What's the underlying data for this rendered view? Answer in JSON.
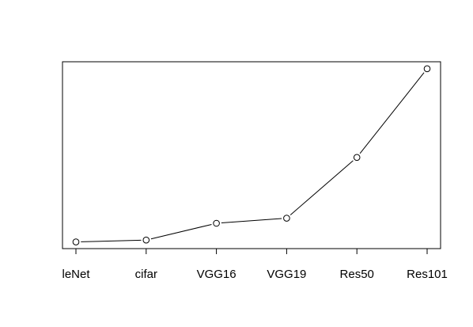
{
  "chart_data": {
    "type": "line",
    "categories": [
      "leNet",
      "cifar",
      "VGG16",
      "VGG19",
      "Res50",
      "Res101"
    ],
    "series": [
      {
        "values": [
          0.15,
          0.45,
          3.1,
          3.9,
          13.5,
          27.5
        ],
        "marker": "open-circle"
      }
    ],
    "title": "",
    "xlabel": "",
    "ylabel": "",
    "ylim": [
      -0.9,
      28.6
    ],
    "y_axis_visible": false,
    "grid": false,
    "legend": "none",
    "colors": {
      "line": "#000000",
      "marker_fill": "#ffffff",
      "frame": "#000000"
    }
  }
}
